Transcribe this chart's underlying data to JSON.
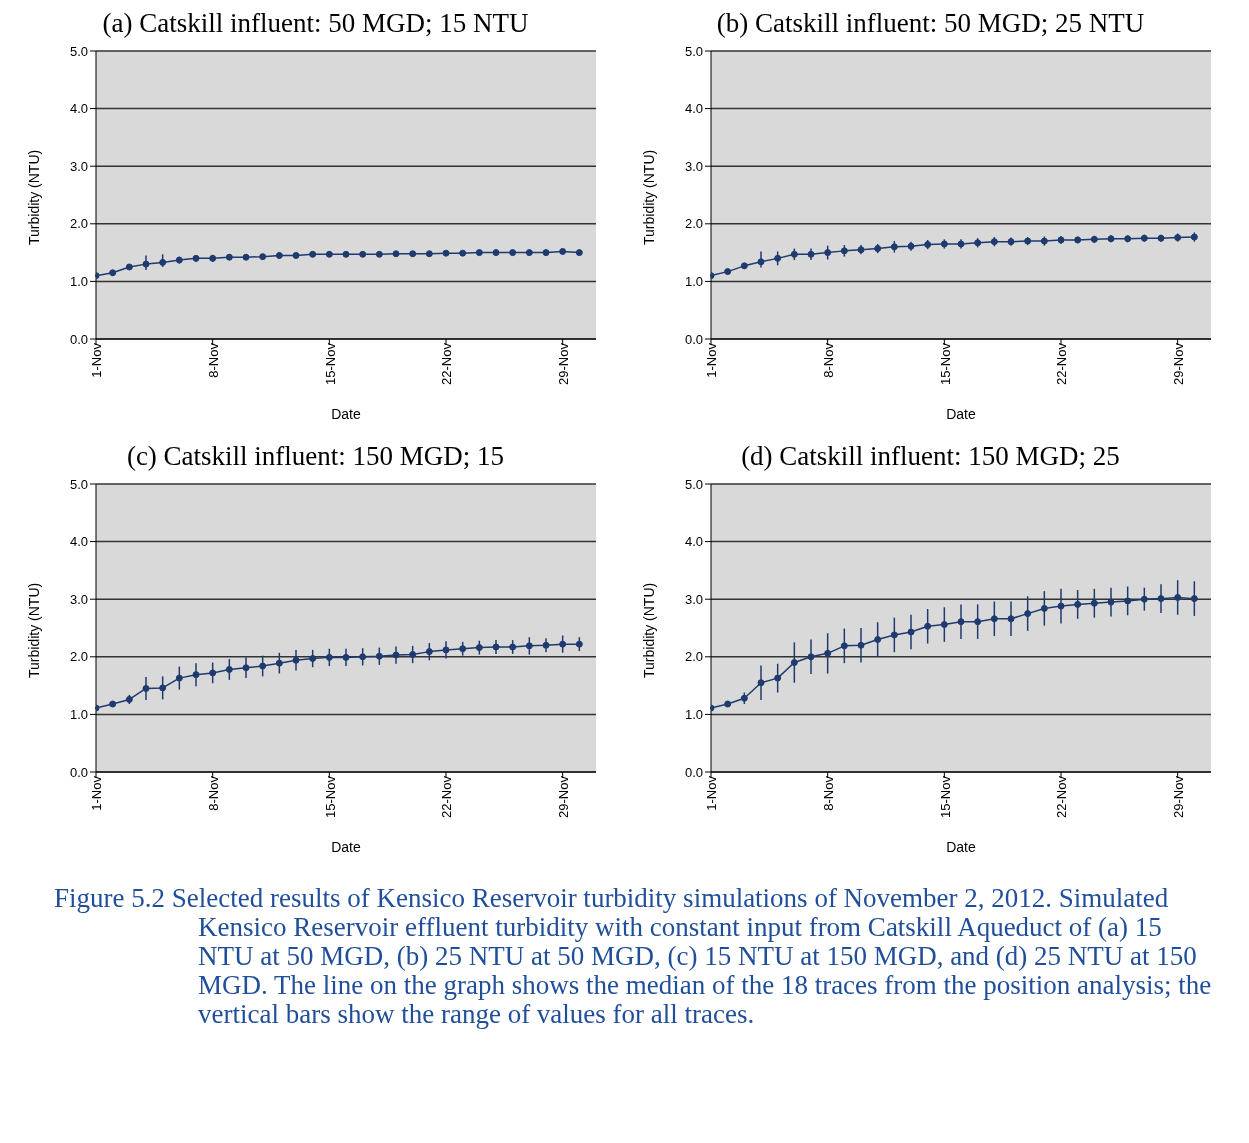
{
  "chart_data": [
    {
      "type": "line",
      "title": "(a) Catskill influent: 50 MGD; 15 NTU",
      "xlabel": "Date",
      "ylabel": "Turbidity (NTU)",
      "color": "#1f3a6e",
      "marker": "circle",
      "grid": "y",
      "xlim": [
        "--11-01",
        "--12-01"
      ],
      "xticks": [
        {
          "value": "--11-01",
          "label": "1-Nov"
        },
        {
          "value": "--11-08",
          "label": "8-Nov"
        },
        {
          "value": "--11-15",
          "label": "15-Nov"
        },
        {
          "value": "--11-22",
          "label": "22-Nov"
        },
        {
          "value": "--11-29",
          "label": "29-Nov"
        }
      ],
      "ylim": [
        0,
        5
      ],
      "yticks": [
        {
          "value": 0,
          "label": "0.0"
        },
        {
          "value": 1,
          "label": "1.0"
        },
        {
          "value": 2,
          "label": "2.0"
        },
        {
          "value": 3,
          "label": "3.0"
        },
        {
          "value": 4,
          "label": "4.0"
        },
        {
          "value": 5,
          "label": "5.0"
        }
      ],
      "x": [
        "--11-01",
        "--11-02",
        "--11-03",
        "--11-04",
        "--11-05",
        "--11-06",
        "--11-07",
        "--11-08",
        "--11-09",
        "--11-10",
        "--11-11",
        "--11-12",
        "--11-13",
        "--11-14",
        "--11-15",
        "--11-16",
        "--11-17",
        "--11-18",
        "--11-19",
        "--11-20",
        "--11-21",
        "--11-22",
        "--11-23",
        "--11-24",
        "--11-25",
        "--11-26",
        "--11-27",
        "--11-28",
        "--11-29",
        "--11-30"
      ],
      "values": [
        1.1,
        1.15,
        1.25,
        1.3,
        1.33,
        1.37,
        1.4,
        1.4,
        1.42,
        1.42,
        1.43,
        1.45,
        1.45,
        1.47,
        1.47,
        1.47,
        1.47,
        1.47,
        1.48,
        1.48,
        1.48,
        1.49,
        1.49,
        1.5,
        1.5,
        1.5,
        1.5,
        1.5,
        1.52,
        1.5
      ],
      "errors": [
        0.02,
        0.03,
        0.04,
        [
          1.2,
          1.45
        ],
        [
          1.25,
          1.47
        ],
        0.06,
        0.06,
        0.06,
        0.05,
        0.05,
        0.05,
        0.05,
        0.04,
        0.04,
        0.04,
        0.04,
        0.04,
        0.04,
        0.04,
        0.04,
        0.04,
        0.04,
        0.04,
        0.03,
        0.03,
        0.03,
        0.03,
        0.03,
        0.03,
        0.03
      ]
    },
    {
      "type": "line",
      "title": "(b) Catskill influent: 50 MGD; 25 NTU",
      "xlabel": "Date",
      "ylabel": "Turbidity (NTU)",
      "color": "#1f3a6e",
      "marker": "circle",
      "grid": "y",
      "xlim": [
        "--11-01",
        "--12-01"
      ],
      "xticks": [
        {
          "value": "--11-01",
          "label": "1-Nov"
        },
        {
          "value": "--11-08",
          "label": "8-Nov"
        },
        {
          "value": "--11-15",
          "label": "15-Nov"
        },
        {
          "value": "--11-22",
          "label": "22-Nov"
        },
        {
          "value": "--11-29",
          "label": "29-Nov"
        }
      ],
      "ylim": [
        0,
        5
      ],
      "yticks": [
        {
          "value": 0,
          "label": "0.0"
        },
        {
          "value": 1,
          "label": "1.0"
        },
        {
          "value": 2,
          "label": "2.0"
        },
        {
          "value": 3,
          "label": "3.0"
        },
        {
          "value": 4,
          "label": "4.0"
        },
        {
          "value": 5,
          "label": "5.0"
        }
      ],
      "x": [
        "--11-01",
        "--11-02",
        "--11-03",
        "--11-04",
        "--11-05",
        "--11-06",
        "--11-07",
        "--11-08",
        "--11-09",
        "--11-10",
        "--11-11",
        "--11-12",
        "--11-13",
        "--11-14",
        "--11-15",
        "--11-16",
        "--11-17",
        "--11-18",
        "--11-19",
        "--11-20",
        "--11-21",
        "--11-22",
        "--11-23",
        "--11-24",
        "--11-25",
        "--11-26",
        "--11-27",
        "--11-28",
        "--11-29",
        "--11-30"
      ],
      "values": [
        1.1,
        1.17,
        1.27,
        1.34,
        1.4,
        1.47,
        1.47,
        1.5,
        1.53,
        1.55,
        1.57,
        1.6,
        1.61,
        1.64,
        1.65,
        1.65,
        1.67,
        1.69,
        1.69,
        1.7,
        1.7,
        1.72,
        1.72,
        1.73,
        1.74,
        1.74,
        1.75,
        1.75,
        1.76,
        1.77
      ],
      "errors": [
        0.02,
        0.03,
        0.05,
        [
          1.24,
          1.52
        ],
        [
          1.28,
          1.52
        ],
        0.1,
        0.1,
        0.12,
        0.1,
        0.08,
        0.08,
        0.1,
        0.08,
        0.08,
        0.08,
        0.08,
        0.08,
        0.08,
        0.07,
        0.07,
        0.08,
        0.07,
        0.06,
        0.06,
        0.06,
        0.06,
        0.06,
        0.06,
        0.07,
        0.08
      ]
    },
    {
      "type": "line",
      "title": "(c) Catskill influent: 150 MGD; 15",
      "xlabel": "Date",
      "ylabel": "Turbidity (NTU)",
      "color": "#1f3a6e",
      "marker": "circle",
      "grid": "y",
      "xlim": [
        "--11-01",
        "--12-01"
      ],
      "xticks": [
        {
          "value": "--11-01",
          "label": "1-Nov"
        },
        {
          "value": "--11-08",
          "label": "8-Nov"
        },
        {
          "value": "--11-15",
          "label": "15-Nov"
        },
        {
          "value": "--11-22",
          "label": "22-Nov"
        },
        {
          "value": "--11-29",
          "label": "29-Nov"
        }
      ],
      "ylim": [
        0,
        5
      ],
      "yticks": [
        {
          "value": 0,
          "label": "0.0"
        },
        {
          "value": 1,
          "label": "1.0"
        },
        {
          "value": 2,
          "label": "2.0"
        },
        {
          "value": 3,
          "label": "3.0"
        },
        {
          "value": 4,
          "label": "4.0"
        },
        {
          "value": 5,
          "label": "5.0"
        }
      ],
      "x": [
        "--11-01",
        "--11-02",
        "--11-03",
        "--11-04",
        "--11-05",
        "--11-06",
        "--11-07",
        "--11-08",
        "--11-09",
        "--11-10",
        "--11-11",
        "--11-12",
        "--11-13",
        "--11-14",
        "--11-15",
        "--11-16",
        "--11-17",
        "--11-18",
        "--11-19",
        "--11-20",
        "--11-21",
        "--11-22",
        "--11-23",
        "--11-24",
        "--11-25",
        "--11-26",
        "--11-27",
        "--11-28",
        "--11-29",
        "--11-30"
      ],
      "values": [
        1.11,
        1.18,
        1.26,
        1.45,
        1.46,
        1.63,
        1.69,
        1.72,
        1.78,
        1.81,
        1.84,
        1.89,
        1.94,
        1.97,
        1.99,
        1.99,
        2.0,
        2.01,
        2.03,
        2.04,
        2.09,
        2.12,
        2.14,
        2.16,
        2.17,
        2.17,
        2.19,
        2.2,
        2.22,
        2.22
      ],
      "errors": [
        0.02,
        0.03,
        0.08,
        0.2,
        0.2,
        0.2,
        0.2,
        0.18,
        0.18,
        0.18,
        0.18,
        0.18,
        0.18,
        0.15,
        0.15,
        0.15,
        0.15,
        0.15,
        0.15,
        0.15,
        0.15,
        0.15,
        0.12,
        0.12,
        0.12,
        0.12,
        0.15,
        0.12,
        0.15,
        0.12
      ]
    },
    {
      "type": "line",
      "title": "(d) Catskill influent: 150 MGD; 25",
      "xlabel": "Date",
      "ylabel": "Turbidity (NTU)",
      "color": "#1f3a6e",
      "marker": "circle",
      "grid": "y",
      "xlim": [
        "--11-01",
        "--12-01"
      ],
      "xticks": [
        {
          "value": "--11-01",
          "label": "1-Nov"
        },
        {
          "value": "--11-08",
          "label": "8-Nov"
        },
        {
          "value": "--11-15",
          "label": "15-Nov"
        },
        {
          "value": "--11-22",
          "label": "22-Nov"
        },
        {
          "value": "--11-29",
          "label": "29-Nov"
        }
      ],
      "ylim": [
        0,
        5
      ],
      "yticks": [
        {
          "value": 0,
          "label": "0.0"
        },
        {
          "value": 1,
          "label": "1.0"
        },
        {
          "value": 2,
          "label": "2.0"
        },
        {
          "value": 3,
          "label": "3.0"
        },
        {
          "value": 4,
          "label": "4.0"
        },
        {
          "value": 5,
          "label": "5.0"
        }
      ],
      "x": [
        "--11-01",
        "--11-02",
        "--11-03",
        "--11-04",
        "--11-05",
        "--11-06",
        "--11-07",
        "--11-08",
        "--11-09",
        "--11-10",
        "--11-11",
        "--11-12",
        "--11-13",
        "--11-14",
        "--11-15",
        "--11-16",
        "--11-17",
        "--11-18",
        "--11-19",
        "--11-20",
        "--11-21",
        "--11-22",
        "--11-23",
        "--11-24",
        "--11-25",
        "--11-26",
        "--11-27",
        "--11-28",
        "--11-29",
        "--11-30"
      ],
      "values": [
        1.11,
        1.18,
        1.28,
        1.55,
        1.63,
        1.9,
        2.0,
        2.06,
        2.19,
        2.2,
        2.3,
        2.38,
        2.43,
        2.53,
        2.56,
        2.61,
        2.61,
        2.66,
        2.66,
        2.75,
        2.84,
        2.88,
        2.91,
        2.93,
        2.95,
        2.97,
        3.0,
        3.01,
        3.03,
        3.01
      ],
      "errors": [
        0.02,
        0.03,
        0.1,
        0.3,
        0.25,
        0.35,
        0.3,
        0.35,
        0.3,
        0.3,
        0.3,
        0.3,
        0.3,
        0.3,
        0.3,
        0.3,
        0.3,
        0.3,
        0.3,
        0.3,
        0.3,
        0.3,
        0.25,
        0.25,
        0.25,
        0.25,
        0.2,
        0.25,
        0.3,
        0.3
      ],
      "annotations": [
        "Figure 5.2  Selected results of Kensico Reservoir turbidity simulations of November 2, 2012. Simulated Kensico Reservoir effluent turbidity with constant input from Catskill Aqueduct of (a) 15 NTU at 50 MGD, (b) 25 NTU at 50 MGD, (c) 15 NTU at 150 MGD, and (d) 25 NTU at 150 MGD. The line on the graph shows the median of the 18 traces from the position analysis; the vertical bars show the range of values for all traces."
      ]
    }
  ]
}
